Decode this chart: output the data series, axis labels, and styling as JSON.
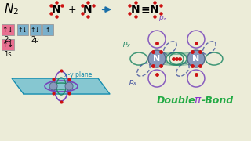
{
  "bg_color": "#ececd8",
  "electron_dot_color": "#cc1111",
  "arrow_color": "#1a6fa8",
  "nitrogen_fill": "#8899bb",
  "orbital_pz_color": "#7744bb",
  "orbital_py_color": "#228866",
  "orbital_px_color": "#334499",
  "plane_color": "#33aacc",
  "plane_alpha": 0.55,
  "box_pink": "#e87090",
  "box_blue": "#7ab0cc",
  "pi_bond_color": "#22aa44",
  "pi_symbol_color": "#8833cc",
  "xy_plane_label": "x-y plane",
  "label_2s": "2s",
  "label_2p": "2p",
  "label_1s": "1s"
}
